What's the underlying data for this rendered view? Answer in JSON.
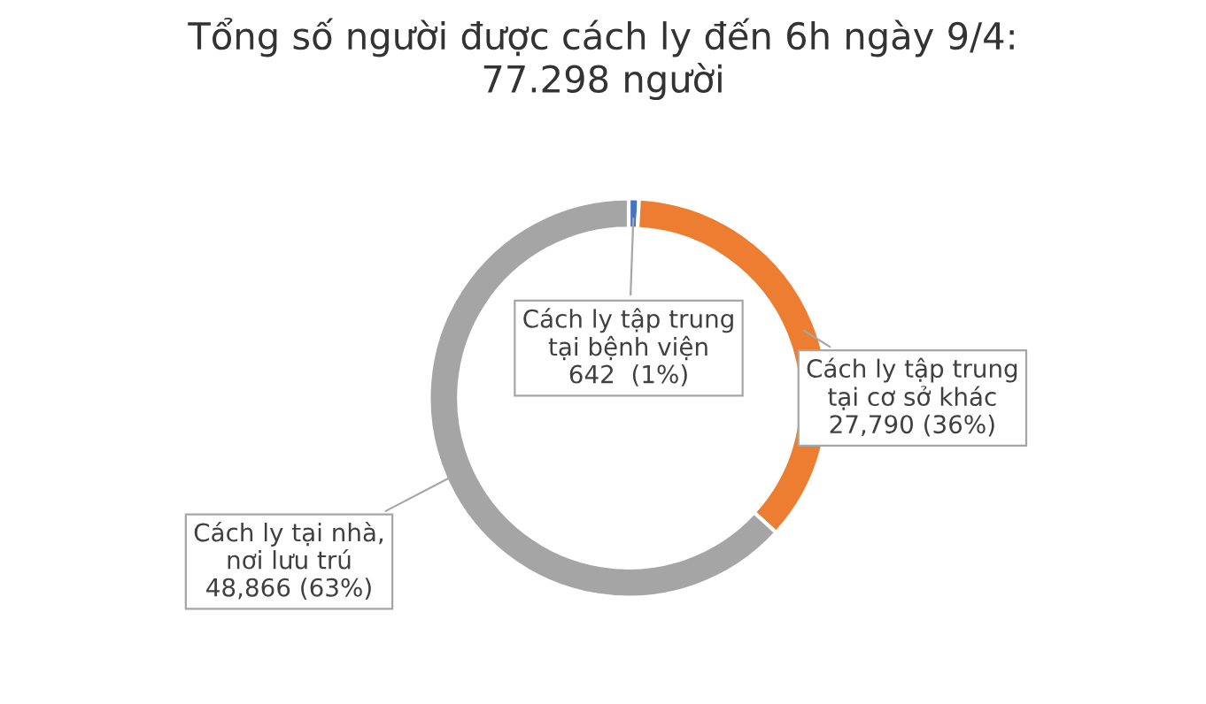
{
  "chart_data": {
    "type": "donut",
    "title": "Tổng số người được cách ly đến 6h ngày 9/4:\n77.298 người",
    "categories": [
      "Cách ly tập trung\ntại bệnh viện",
      "Cách ly tập trung\ntại cơ sở khác",
      "Cách ly tại nhà,\nnơi lưu trú"
    ],
    "values": [
      642,
      27790,
      48866
    ],
    "colors": [
      "#4472c4",
      "#ed7d31",
      "#a5a5a5"
    ],
    "value_labels": [
      "642  (1%)",
      "27,790 (36%)",
      "48,866 (63%)"
    ],
    "legend": false
  }
}
